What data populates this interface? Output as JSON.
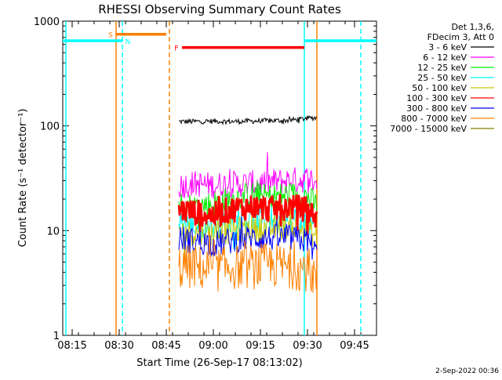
{
  "chart_data": {
    "type": "line",
    "title": "RHESSI Observing Summary Count Rates",
    "xlabel": "Start Time (26-Sep-17 08:13:02)",
    "ylabel": "Count Rate (s⁻¹ detector⁻¹)",
    "y_scale": "log",
    "ylim": [
      1,
      1000
    ],
    "xlim": [
      "08:12",
      "09:52"
    ],
    "x_ticks": [
      "08:15",
      "08:30",
      "08:45",
      "09:00",
      "09:15",
      "09:30",
      "09:45"
    ],
    "y_ticks": [
      "1",
      "10",
      "100",
      "1000"
    ],
    "legend_header": [
      "Det 1,3,6,",
      "FDecim 3, Att 0"
    ],
    "legend_placement": "outside-right",
    "series": [
      {
        "name": "3 - 6 keV",
        "color": "#000000",
        "x": [
          "08:49",
          "08:54",
          "09:00",
          "09:06",
          "09:12",
          "09:18",
          "09:24",
          "09:30",
          "09:33"
        ],
        "y": [
          110,
          110,
          111,
          110,
          111,
          112,
          113,
          118,
          120
        ]
      },
      {
        "name": "6 - 12 keV",
        "color": "#ff00ff",
        "x": [
          "08:49",
          "08:54",
          "09:00",
          "09:06",
          "09:12",
          "09:18",
          "09:24",
          "09:30",
          "09:33"
        ],
        "y": [
          27,
          28,
          27,
          28,
          28,
          29,
          30,
          31,
          29
        ]
      },
      {
        "name": "12 - 25 keV",
        "color": "#00ee00",
        "x": [
          "08:49",
          "08:54",
          "09:00",
          "09:06",
          "09:12",
          "09:18",
          "09:24",
          "09:30",
          "09:33"
        ],
        "y": [
          18,
          17,
          18,
          20,
          22,
          21,
          22,
          21,
          17
        ]
      },
      {
        "name": "25 - 50 keV",
        "color": "#00ffff",
        "x": [
          "08:49",
          "08:54",
          "09:00",
          "09:06",
          "09:12",
          "09:18",
          "09:24",
          "09:30",
          "09:33"
        ],
        "y": [
          12,
          11,
          11,
          12,
          13,
          13,
          13,
          12,
          10
        ]
      },
      {
        "name": "50 - 100 keV",
        "color": "#c8c800",
        "x": [
          "08:49",
          "08:54",
          "09:00",
          "09:06",
          "09:12",
          "09:18",
          "09:24",
          "09:30",
          "09:33"
        ],
        "y": [
          10,
          9.5,
          9.5,
          10,
          10.5,
          10.5,
          11,
          10,
          8.5
        ]
      },
      {
        "name": "100 - 300 keV",
        "color": "#ff0000",
        "x": [
          "08:49",
          "08:54",
          "09:00",
          "09:06",
          "09:12",
          "09:18",
          "09:24",
          "09:30",
          "09:33"
        ],
        "y": [
          16,
          15,
          14,
          16,
          17,
          16,
          17,
          16,
          13
        ]
      },
      {
        "name": "300 - 800 keV",
        "color": "#0000ff",
        "x": [
          "08:49",
          "08:54",
          "09:00",
          "09:06",
          "09:12",
          "09:18",
          "09:24",
          "09:30",
          "09:33"
        ],
        "y": [
          8.5,
          8,
          7.5,
          8,
          8.5,
          8.5,
          8.5,
          8,
          6
        ]
      },
      {
        "name": "800 - 7000 keV",
        "color": "#ff8000",
        "x": [
          "08:49",
          "08:54",
          "09:00",
          "09:06",
          "09:12",
          "09:18",
          "09:24",
          "09:30",
          "09:33"
        ],
        "y": [
          4.5,
          4.5,
          4.2,
          4.5,
          4.5,
          4.7,
          4.5,
          4.3,
          3.5
        ]
      },
      {
        "name": "7000 - 15000 keV",
        "color": "#808000",
        "x": [],
        "y": []
      }
    ],
    "annotations": [
      {
        "label": "S",
        "color": "#ff8000",
        "x_start": "08:29",
        "x_end": "08:45",
        "y": 750
      },
      {
        "label": "N",
        "color": "#00ffff",
        "x_start": "08:12",
        "x_end": "08:31",
        "y": 650
      },
      {
        "label": "F",
        "color": "#ff0000",
        "x_start": "08:50",
        "x_end": "09:29",
        "y": 560
      },
      {
        "label": "",
        "color": "#00ffff",
        "x_start": "09:29",
        "x_end": "09:52",
        "y": 650
      }
    ],
    "vertical_lines": [
      {
        "x": "08:13",
        "color": "#00ffff",
        "style": "solid"
      },
      {
        "x": "08:29",
        "color": "#ff8000",
        "style": "solid"
      },
      {
        "x": "08:31",
        "color": "#00ffff",
        "style": "dashed"
      },
      {
        "x": "08:46",
        "color": "#ff8000",
        "style": "dashed"
      },
      {
        "x": "09:29",
        "color": "#00ffff",
        "style": "solid"
      },
      {
        "x": "09:33",
        "color": "#ff8000",
        "style": "solid"
      },
      {
        "x": "09:47",
        "color": "#00ffff",
        "style": "dashed"
      }
    ]
  },
  "footer": {
    "timestamp": "2-Sep-2022 00:36"
  }
}
